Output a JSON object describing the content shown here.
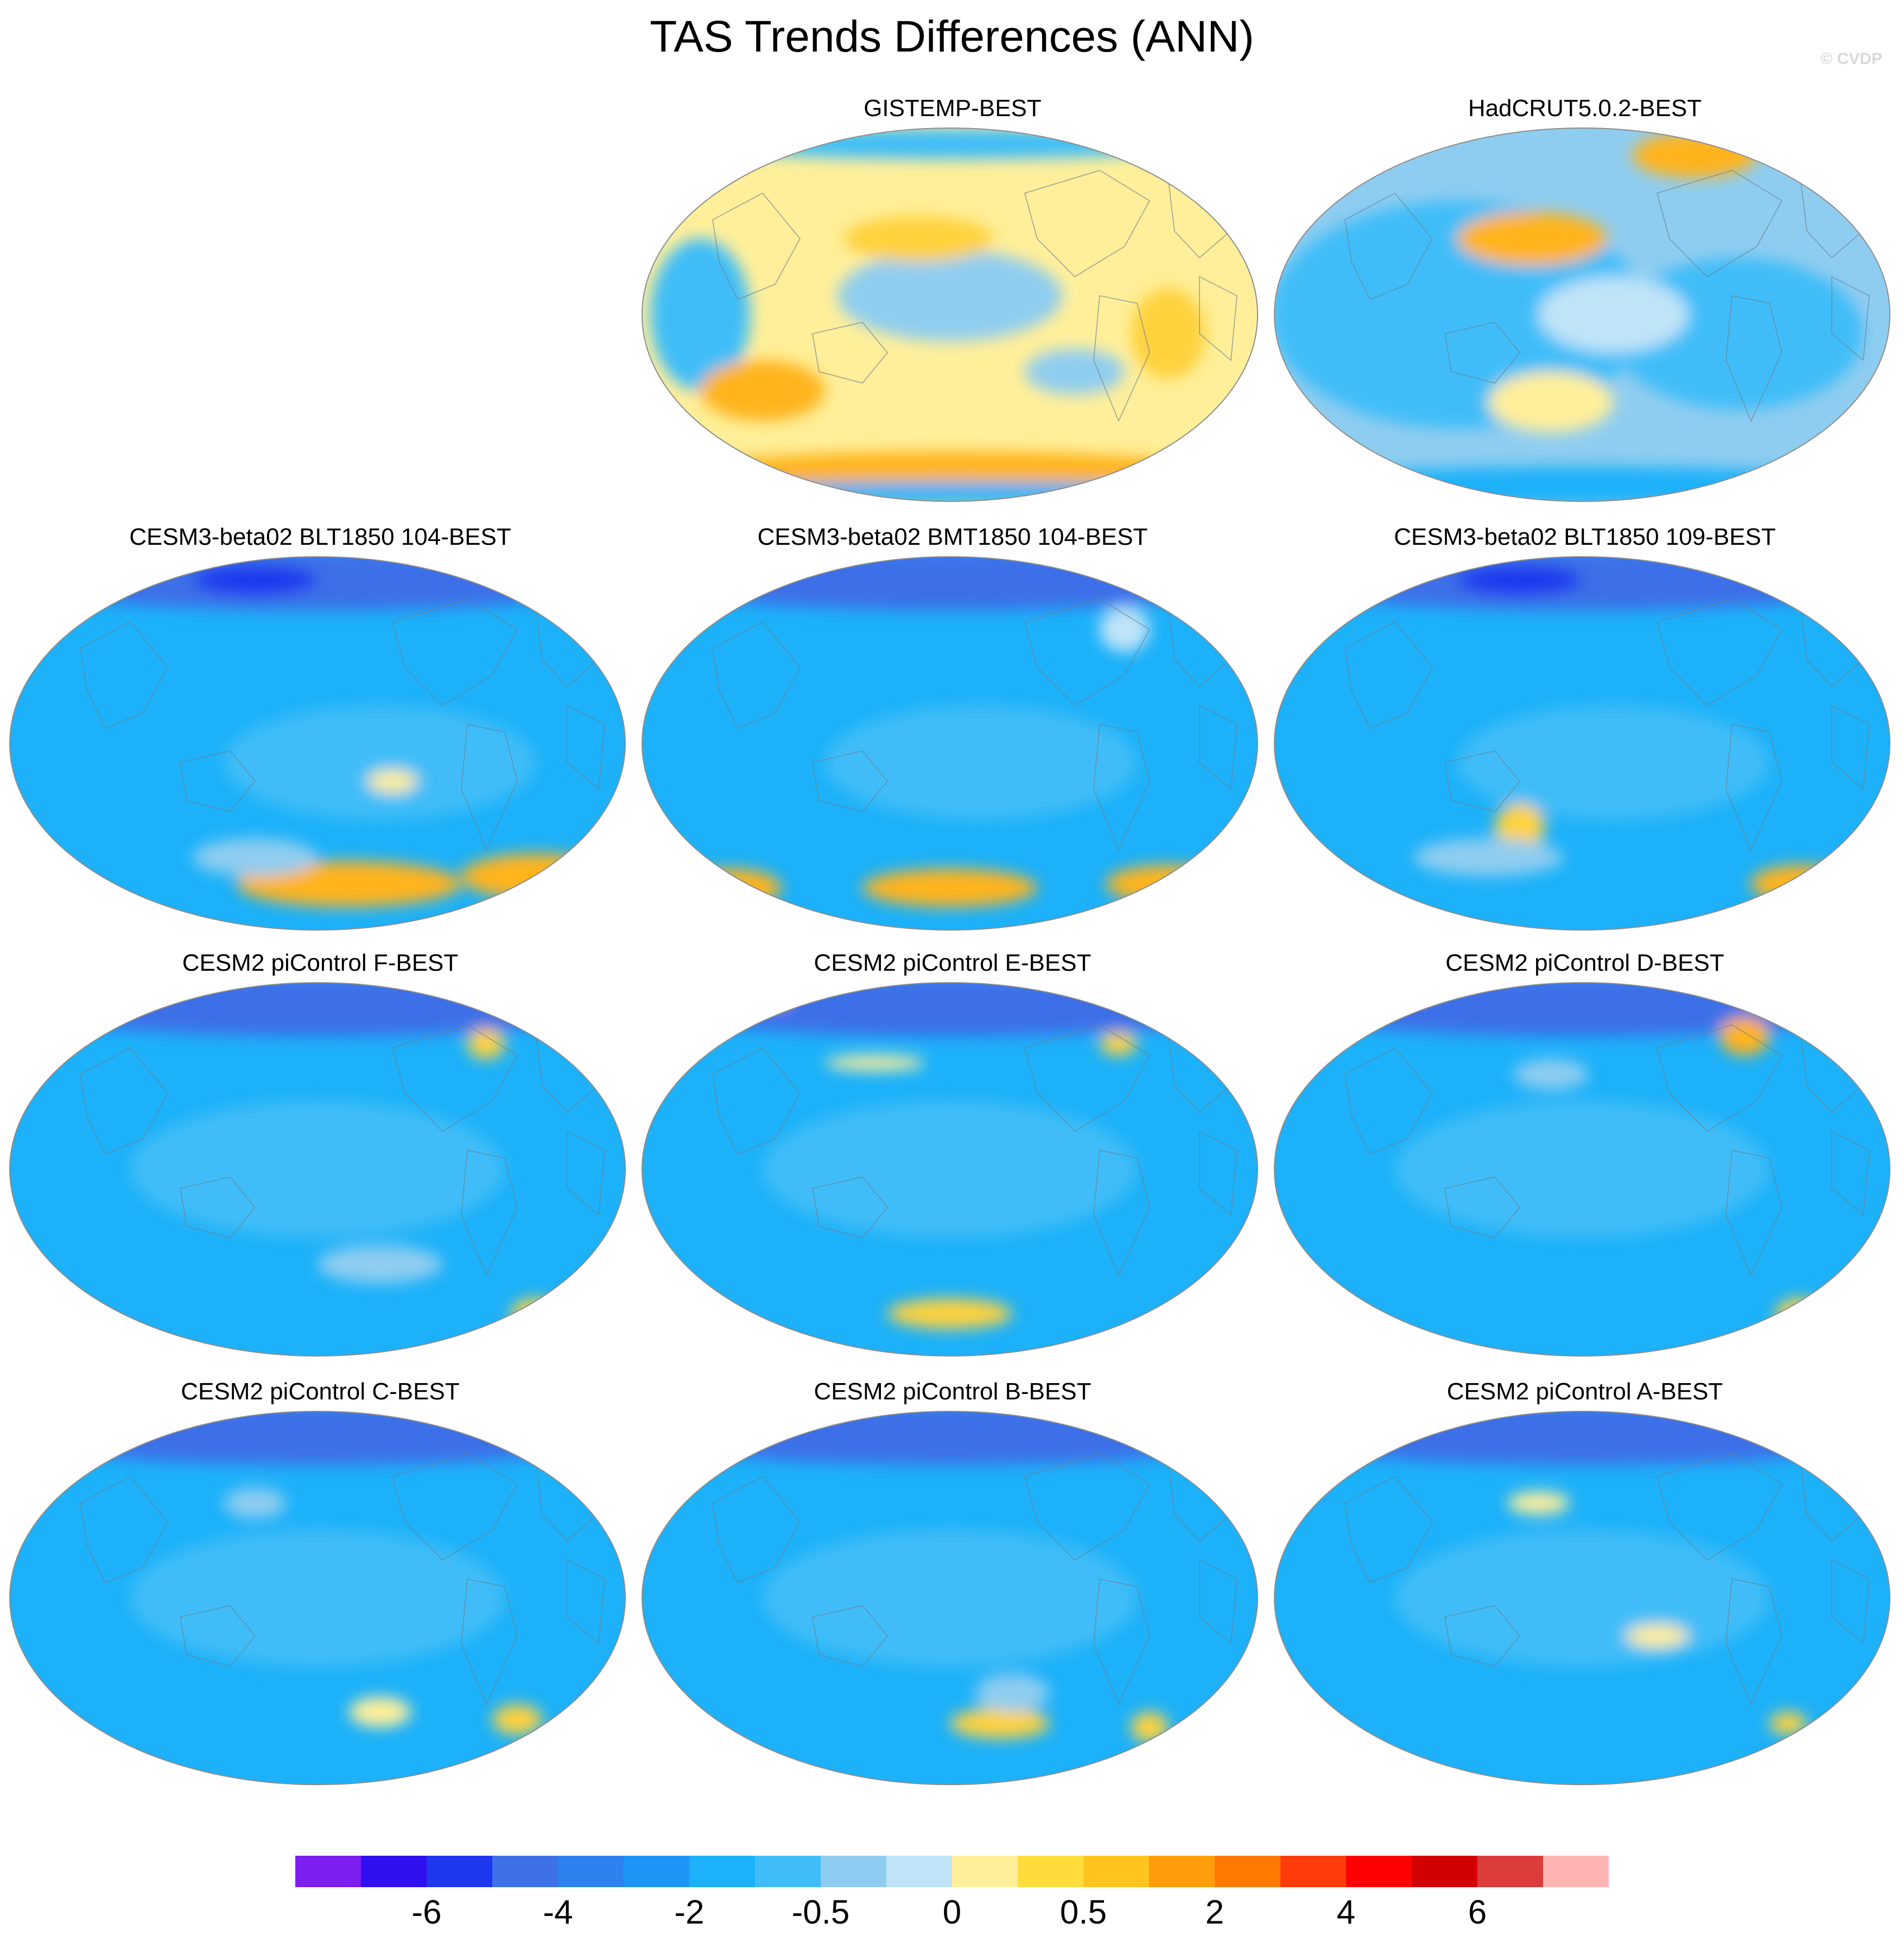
{
  "title": "TAS Trends Differences (ANN)",
  "watermark": "© CVDP",
  "colors": {
    "land_outline": "#6a7f8f",
    "map_outline": "#8c8c8c"
  },
  "panels": [
    {
      "title": "GISTEMP-BEST",
      "base": "#ffef9a",
      "patches": [
        [
          "#8fcdf0",
          0.5,
          0.45,
          0.18,
          0.12
        ],
        [
          "#40bdf8",
          0.1,
          0.5,
          0.08,
          0.2
        ],
        [
          "#ffd23c",
          0.45,
          0.3,
          0.12,
          0.06
        ],
        [
          "#ffb41e",
          0.5,
          0.92,
          0.45,
          0.06
        ],
        [
          "#1cb1f9",
          0.5,
          0.97,
          0.5,
          0.03
        ],
        [
          "#40bdf8",
          0.5,
          0.05,
          0.4,
          0.04
        ],
        [
          "#ffb41e",
          0.2,
          0.7,
          0.1,
          0.08
        ],
        [
          "#8fcdf0",
          0.7,
          0.65,
          0.08,
          0.06
        ],
        [
          "#ffd23c",
          0.85,
          0.55,
          0.06,
          0.12
        ]
      ]
    },
    {
      "title": "HadCRUT5.0.2-BEST",
      "base": "#8fcdf0",
      "patches": [
        [
          "#40bdf8",
          0.3,
          0.5,
          0.3,
          0.3
        ],
        [
          "#40bdf8",
          0.75,
          0.55,
          0.2,
          0.2
        ],
        [
          "#ffb41e",
          0.42,
          0.3,
          0.12,
          0.07
        ],
        [
          "#ffb41e",
          0.68,
          0.08,
          0.1,
          0.06
        ],
        [
          "#ffef9a",
          0.45,
          0.73,
          0.1,
          0.08
        ],
        [
          "#bfe4f8",
          0.55,
          0.5,
          0.12,
          0.1
        ],
        [
          "#1cb1f9",
          0.5,
          0.95,
          0.5,
          0.05
        ]
      ]
    },
    {
      "title": "CESM3-beta02 BLT1850 104-BEST",
      "base": "#1cb1f9",
      "patches": [
        [
          "#3e70e8",
          0.5,
          0.07,
          0.5,
          0.08
        ],
        [
          "#1f38ee",
          0.4,
          0.07,
          0.1,
          0.04
        ],
        [
          "#40bdf8",
          0.6,
          0.55,
          0.25,
          0.15
        ],
        [
          "#ffb41e",
          0.55,
          0.87,
          0.18,
          0.06
        ],
        [
          "#ffb41e",
          0.85,
          0.85,
          0.12,
          0.06
        ],
        [
          "#ffef9a",
          0.62,
          0.6,
          0.04,
          0.03
        ],
        [
          "#8fcdf0",
          0.4,
          0.8,
          0.1,
          0.05
        ]
      ]
    },
    {
      "title": "CESM3-beta02 BMT1850 104-BEST",
      "base": "#1cb1f9",
      "patches": [
        [
          "#3e70e8",
          0.5,
          0.07,
          0.5,
          0.08
        ],
        [
          "#40bdf8",
          0.55,
          0.55,
          0.25,
          0.15
        ],
        [
          "#ffb41e",
          0.5,
          0.88,
          0.14,
          0.05
        ],
        [
          "#ffb41e",
          0.85,
          0.87,
          0.1,
          0.05
        ],
        [
          "#ffb41e",
          0.15,
          0.88,
          0.08,
          0.05
        ],
        [
          "#bfe4f8",
          0.78,
          0.2,
          0.04,
          0.06
        ]
      ]
    },
    {
      "title": "CESM3-beta02 BLT1850 109-BEST",
      "base": "#1cb1f9",
      "patches": [
        [
          "#3e70e8",
          0.5,
          0.07,
          0.5,
          0.08
        ],
        [
          "#1f38ee",
          0.4,
          0.07,
          0.1,
          0.04
        ],
        [
          "#40bdf8",
          0.55,
          0.55,
          0.25,
          0.15
        ],
        [
          "#ffd23c",
          0.4,
          0.72,
          0.04,
          0.06
        ],
        [
          "#ffb41e",
          0.85,
          0.87,
          0.08,
          0.05
        ],
        [
          "#8fcdf0",
          0.35,
          0.8,
          0.12,
          0.05
        ]
      ]
    },
    {
      "title": "CESM2 piControl F-BEST",
      "base": "#1cb1f9",
      "patches": [
        [
          "#3e70e8",
          0.5,
          0.07,
          0.5,
          0.08
        ],
        [
          "#40bdf8",
          0.5,
          0.5,
          0.3,
          0.18
        ],
        [
          "#ffd23c",
          0.77,
          0.17,
          0.03,
          0.04
        ],
        [
          "#ffd23c",
          0.85,
          0.88,
          0.04,
          0.04
        ],
        [
          "#8fcdf0",
          0.6,
          0.75,
          0.1,
          0.05
        ]
      ]
    },
    {
      "title": "CESM2 piControl E-BEST",
      "base": "#1cb1f9",
      "patches": [
        [
          "#3e70e8",
          0.5,
          0.07,
          0.5,
          0.08
        ],
        [
          "#40bdf8",
          0.5,
          0.5,
          0.3,
          0.18
        ],
        [
          "#ffef9a",
          0.38,
          0.22,
          0.08,
          0.02
        ],
        [
          "#ffd23c",
          0.5,
          0.88,
          0.1,
          0.04
        ],
        [
          "#ffd23c",
          0.77,
          0.17,
          0.03,
          0.03
        ],
        [
          "#ffb41e",
          0.22,
          0.05,
          0.02,
          0.02
        ]
      ]
    },
    {
      "title": "CESM2 piControl D-BEST",
      "base": "#1cb1f9",
      "patches": [
        [
          "#3e70e8",
          0.5,
          0.07,
          0.5,
          0.08
        ],
        [
          "#40bdf8",
          0.5,
          0.5,
          0.3,
          0.18
        ],
        [
          "#ffb41e",
          0.76,
          0.15,
          0.04,
          0.05
        ],
        [
          "#ffd23c",
          0.85,
          0.88,
          0.04,
          0.04
        ],
        [
          "#8fcdf0",
          0.45,
          0.25,
          0.06,
          0.04
        ]
      ]
    },
    {
      "title": "CESM2 piControl C-BEST",
      "base": "#1cb1f9",
      "patches": [
        [
          "#3e70e8",
          0.5,
          0.07,
          0.5,
          0.08
        ],
        [
          "#40bdf8",
          0.5,
          0.5,
          0.3,
          0.18
        ],
        [
          "#ffef9a",
          0.6,
          0.8,
          0.05,
          0.04
        ],
        [
          "#ffd23c",
          0.82,
          0.82,
          0.04,
          0.04
        ],
        [
          "#8fcdf0",
          0.4,
          0.25,
          0.05,
          0.04
        ]
      ]
    },
    {
      "title": "CESM2 piControl B-BEST",
      "base": "#1cb1f9",
      "patches": [
        [
          "#3e70e8",
          0.5,
          0.07,
          0.5,
          0.08
        ],
        [
          "#40bdf8",
          0.5,
          0.5,
          0.3,
          0.18
        ],
        [
          "#ffd23c",
          0.58,
          0.83,
          0.08,
          0.04
        ],
        [
          "#ffd23c",
          0.82,
          0.84,
          0.03,
          0.04
        ],
        [
          "#8fcdf0",
          0.6,
          0.75,
          0.06,
          0.05
        ]
      ]
    },
    {
      "title": "CESM2 piControl A-BEST",
      "base": "#1cb1f9",
      "patches": [
        [
          "#3e70e8",
          0.5,
          0.07,
          0.5,
          0.08
        ],
        [
          "#40bdf8",
          0.5,
          0.5,
          0.3,
          0.18
        ],
        [
          "#ffef9a",
          0.43,
          0.25,
          0.05,
          0.03
        ],
        [
          "#ffef9a",
          0.62,
          0.6,
          0.05,
          0.03
        ],
        [
          "#ffd23c",
          0.83,
          0.83,
          0.03,
          0.03
        ]
      ]
    }
  ],
  "colorbar": {
    "colors": [
      "#7d1ff0",
      "#3010f0",
      "#1f38ee",
      "#3e70e8",
      "#2e82f0",
      "#1e96f8",
      "#1cb1f9",
      "#40bdf8",
      "#8fcdf0",
      "#bfe4f8",
      "#ffef9a",
      "#ffdc3c",
      "#ffc41e",
      "#ff9e0a",
      "#ff7800",
      "#ff3c0a",
      "#ff0000",
      "#d20000",
      "#dc3c3c",
      "#ffb4b4"
    ],
    "labels": [
      "-6",
      "-4",
      "-2",
      "-0.5",
      "0",
      "0.5",
      "2",
      "4",
      "6"
    ],
    "label_boundaries": [
      2,
      4,
      6,
      8,
      10,
      12,
      14,
      16,
      18
    ]
  }
}
